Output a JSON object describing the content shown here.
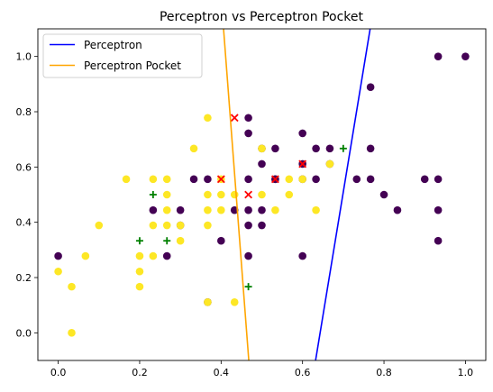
{
  "chart_data": {
    "type": "scatter",
    "title": "Perceptron vs Perceptron Pocket",
    "xlabel": "",
    "ylabel": "",
    "xlim": [
      -0.05,
      1.05
    ],
    "ylim": [
      -0.1,
      1.1
    ],
    "xticks": [
      0.0,
      0.2,
      0.4,
      0.6,
      0.8,
      1.0
    ],
    "xtick_labels": [
      "0.0",
      "0.2",
      "0.4",
      "0.6",
      "0.8",
      "1.0"
    ],
    "yticks": [
      0.0,
      0.2,
      0.4,
      0.6,
      0.8,
      1.0
    ],
    "ytick_labels": [
      "0.0",
      "0.2",
      "0.4",
      "0.6",
      "0.8",
      "1.0"
    ],
    "grid": false,
    "legend_position": "top-left",
    "scatter_series": [
      {
        "class": "purple",
        "color": "#440154",
        "marker": "circle",
        "points": [
          [
            0.0,
            0.278
          ],
          [
            0.267,
            0.278
          ],
          [
            0.233,
            0.444
          ],
          [
            0.3,
            0.444
          ],
          [
            0.3,
            0.389
          ],
          [
            0.333,
            0.556
          ],
          [
            0.367,
            0.556
          ],
          [
            0.4,
            0.333
          ],
          [
            0.433,
            0.444
          ],
          [
            0.467,
            0.778
          ],
          [
            0.467,
            0.722
          ],
          [
            0.467,
            0.556
          ],
          [
            0.467,
            0.444
          ],
          [
            0.467,
            0.389
          ],
          [
            0.467,
            0.278
          ],
          [
            0.5,
            0.667
          ],
          [
            0.5,
            0.611
          ],
          [
            0.5,
            0.444
          ],
          [
            0.5,
            0.389
          ],
          [
            0.533,
            0.667
          ],
          [
            0.533,
            0.556
          ],
          [
            0.533,
            0.556
          ],
          [
            0.6,
            0.722
          ],
          [
            0.6,
            0.611
          ],
          [
            0.6,
            0.556
          ],
          [
            0.6,
            0.278
          ],
          [
            0.633,
            0.667
          ],
          [
            0.633,
            0.556
          ],
          [
            0.667,
            0.667
          ],
          [
            0.667,
            0.611
          ],
          [
            0.733,
            0.556
          ],
          [
            0.767,
            0.889
          ],
          [
            0.767,
            0.667
          ],
          [
            0.767,
            0.556
          ],
          [
            0.8,
            0.5
          ],
          [
            0.833,
            0.444
          ],
          [
            0.9,
            0.556
          ],
          [
            0.933,
            1.0
          ],
          [
            0.933,
            0.556
          ],
          [
            0.933,
            0.444
          ],
          [
            0.933,
            0.333
          ],
          [
            1.0,
            1.0
          ],
          [
            0.367,
            0.111
          ]
        ]
      },
      {
        "class": "yellow",
        "color": "#fde725",
        "marker": "circle",
        "points": [
          [
            0.0,
            0.222
          ],
          [
            0.033,
            0.167
          ],
          [
            0.033,
            0.0
          ],
          [
            0.067,
            0.278
          ],
          [
            0.1,
            0.389
          ],
          [
            0.167,
            0.556
          ],
          [
            0.2,
            0.278
          ],
          [
            0.2,
            0.222
          ],
          [
            0.2,
            0.167
          ],
          [
            0.233,
            0.556
          ],
          [
            0.233,
            0.389
          ],
          [
            0.233,
            0.278
          ],
          [
            0.267,
            0.556
          ],
          [
            0.267,
            0.5
          ],
          [
            0.267,
            0.444
          ],
          [
            0.267,
            0.389
          ],
          [
            0.3,
            0.389
          ],
          [
            0.3,
            0.333
          ],
          [
            0.333,
            0.667
          ],
          [
            0.367,
            0.778
          ],
          [
            0.367,
            0.5
          ],
          [
            0.367,
            0.444
          ],
          [
            0.367,
            0.389
          ],
          [
            0.367,
            0.111
          ],
          [
            0.4,
            0.556
          ],
          [
            0.4,
            0.5
          ],
          [
            0.4,
            0.444
          ],
          [
            0.433,
            0.5
          ],
          [
            0.433,
            0.111
          ],
          [
            0.5,
            0.667
          ],
          [
            0.5,
            0.5
          ],
          [
            0.533,
            0.444
          ],
          [
            0.567,
            0.556
          ],
          [
            0.567,
            0.5
          ],
          [
            0.6,
            0.556
          ],
          [
            0.633,
            0.444
          ],
          [
            0.667,
            0.611
          ]
        ]
      },
      {
        "class": "red-x",
        "color": "#ff0000",
        "marker": "x",
        "points": [
          [
            0.433,
            0.778
          ],
          [
            0.4,
            0.556
          ],
          [
            0.467,
            0.5
          ],
          [
            0.533,
            0.556
          ],
          [
            0.6,
            0.611
          ]
        ]
      },
      {
        "class": "green-plus",
        "color": "#008000",
        "marker": "plus",
        "points": [
          [
            0.233,
            0.5
          ],
          [
            0.2,
            0.333
          ],
          [
            0.267,
            0.333
          ],
          [
            0.467,
            0.167
          ],
          [
            0.7,
            0.667
          ]
        ]
      }
    ],
    "lines": [
      {
        "name": "Perceptron",
        "color": "#0000ff",
        "points": [
          [
            0.632,
            -0.1
          ],
          [
            0.766,
            1.1
          ]
        ]
      },
      {
        "name": "Perceptron Pocket",
        "color": "#ffa500",
        "points": [
          [
            0.406,
            1.1
          ],
          [
            0.468,
            -0.1
          ]
        ]
      }
    ]
  }
}
